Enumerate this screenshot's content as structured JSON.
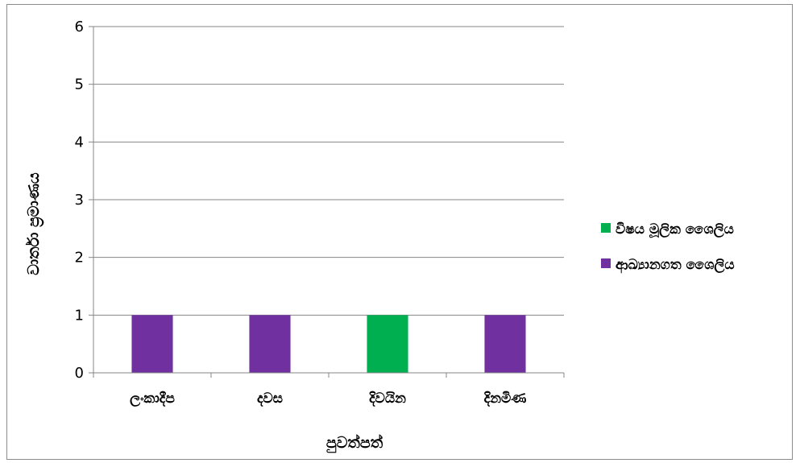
{
  "chart_data": {
    "type": "bar",
    "categories": [
      "ලංකාදීප",
      "දවස",
      "දිවයින",
      "දිනමිණ"
    ],
    "series": [
      {
        "name": "විෂය මූලික ශෛලිය",
        "color": "#00b050",
        "values": [
          0,
          0,
          1,
          0
        ]
      },
      {
        "name": "ආඛ්‍යානගත ශෛලිය",
        "color": "#7030a0",
        "values": [
          1,
          1,
          0,
          1
        ]
      }
    ],
    "xlabel": "පුවත්පත්",
    "ylabel": "වාර්තා ප්‍රමාණය",
    "ylim": [
      0,
      6
    ],
    "yticks": [
      0,
      1,
      2,
      3,
      4,
      5,
      6
    ],
    "grid": true,
    "legend": "right"
  }
}
